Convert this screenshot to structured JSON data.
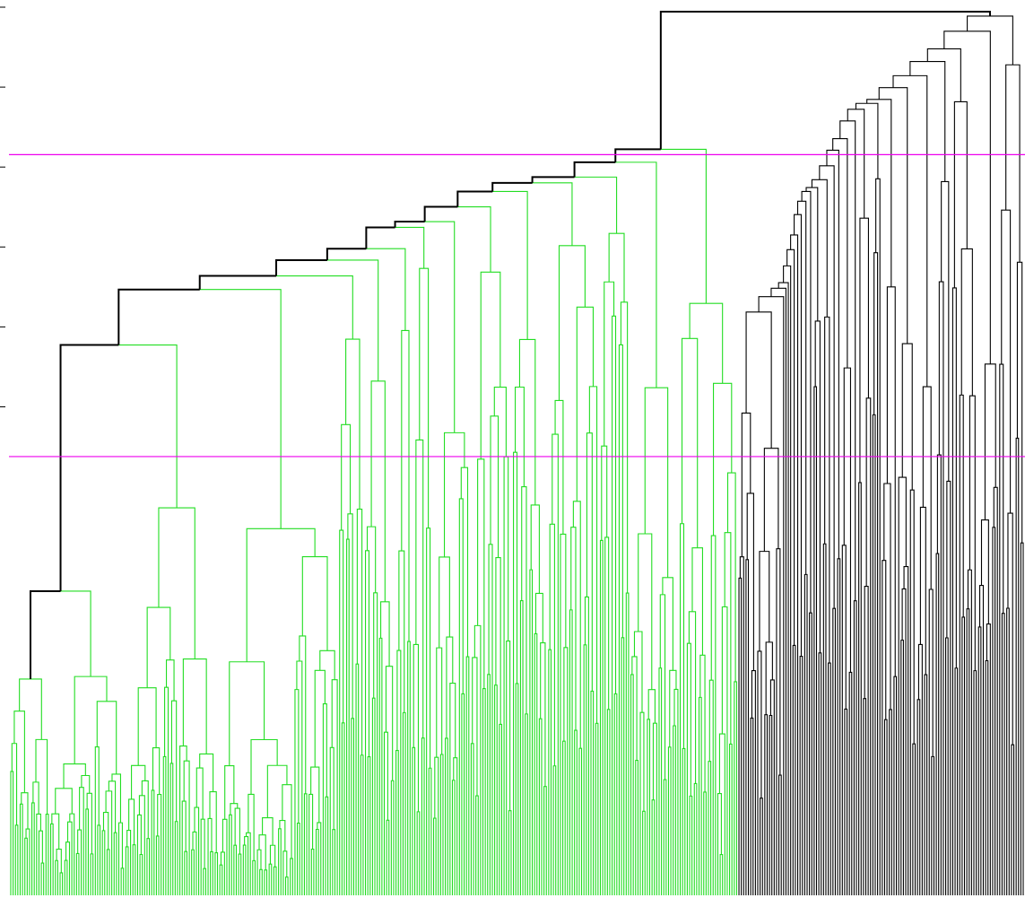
{
  "chart_data": {
    "type": "dendrogram",
    "title": "",
    "xlabel": "",
    "ylabel": "",
    "y_axis": {
      "ticks_labeled": false,
      "tick_count": 6
    },
    "leaf_count": 432,
    "subtrees": [
      {
        "name": "",
        "leaves": 310,
        "root_height": 0.84,
        "color": "#22dd22"
      },
      {
        "name": "",
        "leaves": 122,
        "root_height": 0.99,
        "color": "#000000"
      }
    ],
    "cut_lines": [
      {
        "height": 0.834,
        "color": "#ee00ee"
      },
      {
        "height": 0.494,
        "color": "#ee00ee"
      }
    ],
    "highlighted_path": {
      "color": "#000000",
      "description_free": true
    },
    "colors": {
      "background": "#ffffff",
      "cluster": "#22dd22",
      "other": "#000000",
      "cut": "#ee00ee"
    }
  }
}
